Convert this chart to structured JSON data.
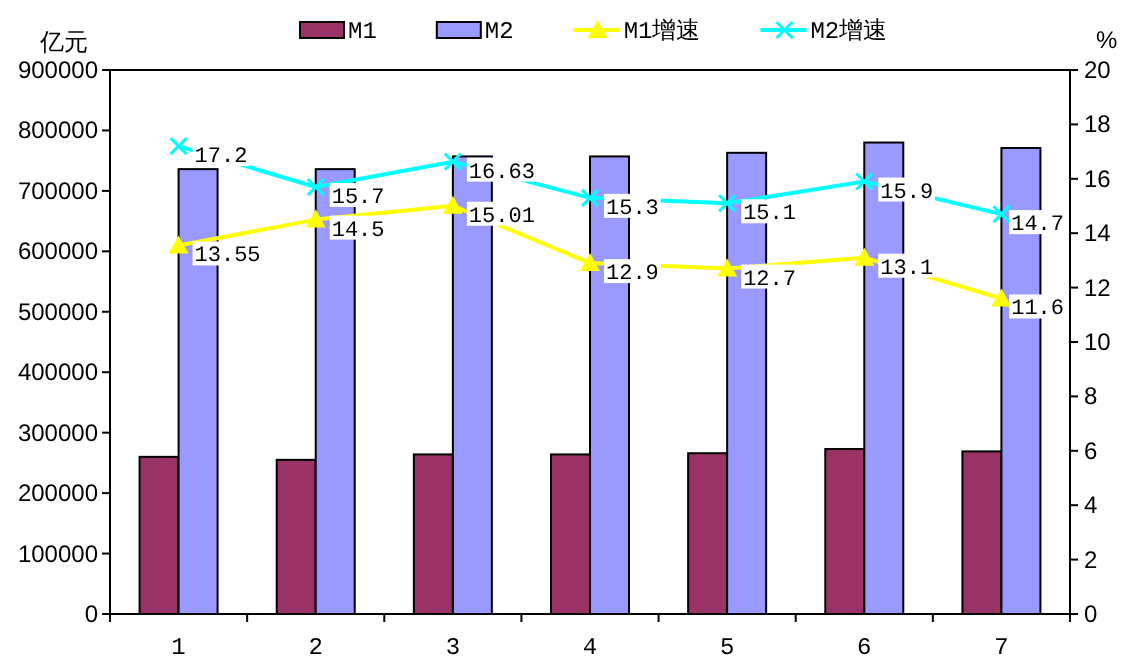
{
  "chart_data": {
    "type": "bar",
    "ylabel": "亿元",
    "y2label": "%",
    "categories": [
      "1",
      "2",
      "3",
      "4",
      "5",
      "6",
      "7"
    ],
    "series": [
      {
        "name": "M1",
        "color": "#993366",
        "values": [
          260000,
          255000,
          264000,
          264000,
          266000,
          273000,
          269000
        ]
      },
      {
        "name": "M2",
        "color": "#9999ff",
        "values": [
          736000,
          736000,
          757000,
          757000,
          763000,
          780000,
          771000
        ]
      },
      {
        "name": "M1增速",
        "type": "line",
        "axis": "y2",
        "color": "#ffff00",
        "marker": "triangle",
        "values": [
          13.55,
          14.5,
          15.01,
          12.9,
          12.7,
          13.1,
          11.6
        ],
        "value_labels": [
          "13.55",
          "14.5",
          "15.01",
          "12.9",
          "12.7",
          "13.1",
          "11.6"
        ]
      },
      {
        "name": "M2增速",
        "type": "line",
        "axis": "y2",
        "color": "#00ffff",
        "marker": "cross",
        "values": [
          17.2,
          15.7,
          16.63,
          15.3,
          15.1,
          15.9,
          14.7
        ],
        "value_labels": [
          "17.2",
          "15.7",
          "16.63",
          "15.3",
          "15.1",
          "15.9",
          "14.7"
        ]
      }
    ],
    "ylim": [
      0,
      900000
    ],
    "yticks": [
      0,
      100000,
      200000,
      300000,
      400000,
      500000,
      600000,
      700000,
      800000,
      900000
    ],
    "y2lim": [
      0,
      20
    ],
    "y2ticks": [
      0,
      2,
      4,
      6,
      8,
      10,
      12,
      14,
      16,
      18,
      20
    ],
    "grid": false,
    "legend": "top"
  }
}
